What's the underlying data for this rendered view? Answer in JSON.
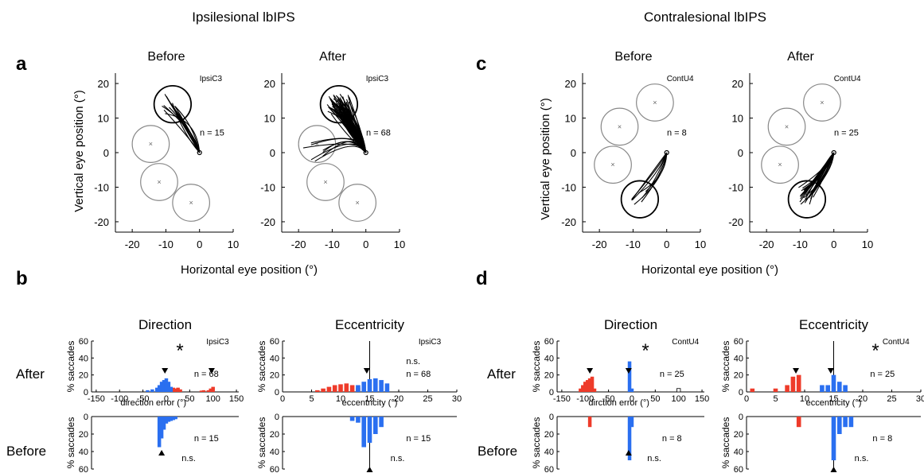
{
  "figure": {
    "left_title": "Ipsilesional lbIPS",
    "right_title": "Contralesional lbIPS",
    "letters": {
      "a": "a",
      "b": "b",
      "c": "c",
      "d": "d"
    },
    "xlabel": "Horizontal eye position (o)",
    "ylabel": "Vertical eye position (o)"
  },
  "colors": {
    "red": "#ee3b2a",
    "blue": "#2a6ff0",
    "circle": "#888888",
    "trace": "#000000"
  },
  "chart_data": [
    {
      "type": "line",
      "panel": "a-before",
      "title": "Before",
      "monkey": "IpsiC3",
      "n": "n = 15",
      "xlim": [
        -25,
        10
      ],
      "ylim": [
        -23,
        23
      ],
      "xticks": [
        -20,
        -10,
        0,
        10
      ],
      "yticks": [
        20,
        10,
        0,
        -10,
        -20
      ],
      "targets": [
        {
          "x": -14.5,
          "y": 2.5,
          "r": 5.5
        },
        {
          "x": -12,
          "y": -8.5,
          "r": 5.5
        },
        {
          "x": -2.5,
          "y": -14.5,
          "r": 5.5
        }
      ],
      "chosen_target": {
        "x": -8,
        "y": 14,
        "r": 5.5
      },
      "n_traces": 15
    },
    {
      "type": "line",
      "panel": "a-after",
      "title": "After",
      "monkey": "IpsiC3",
      "n": "n = 68",
      "xlim": [
        -25,
        10
      ],
      "ylim": [
        -23,
        23
      ],
      "xticks": [
        -20,
        -10,
        0,
        10
      ],
      "yticks": [
        20,
        10,
        0,
        -10,
        -20
      ],
      "targets": [
        {
          "x": -14.5,
          "y": 2.5,
          "r": 5.5
        },
        {
          "x": -12,
          "y": -8.5,
          "r": 5.5
        },
        {
          "x": -2.5,
          "y": -14.5,
          "r": 5.5
        }
      ],
      "chosen_target": {
        "x": -8,
        "y": 14,
        "r": 5.5
      },
      "n_traces": 68
    },
    {
      "type": "line",
      "panel": "c-before",
      "title": "Before",
      "monkey": "ContU4",
      "n": "n = 8",
      "xlim": [
        -25,
        10
      ],
      "ylim": [
        -23,
        23
      ],
      "xticks": [
        -20,
        -10,
        0,
        10
      ],
      "yticks": [
        20,
        10,
        0,
        -10,
        -20
      ],
      "targets": [
        {
          "x": -14,
          "y": 7.5,
          "r": 5.5
        },
        {
          "x": -3.5,
          "y": 14.5,
          "r": 5.5
        },
        {
          "x": -16,
          "y": -3.5,
          "r": 5.5
        }
      ],
      "chosen_target": {
        "x": -8,
        "y": -13.5,
        "r": 5.5
      },
      "n_traces": 8
    },
    {
      "type": "line",
      "panel": "c-after",
      "title": "After",
      "monkey": "ContU4",
      "n": "n = 25",
      "xlim": [
        -25,
        10
      ],
      "ylim": [
        -23,
        23
      ],
      "xticks": [
        -20,
        -10,
        0,
        10
      ],
      "yticks": [
        20,
        10,
        0,
        -10,
        -20
      ],
      "targets": [
        {
          "x": -14,
          "y": 7.5,
          "r": 5.5
        },
        {
          "x": -3.5,
          "y": 14.5,
          "r": 5.5
        },
        {
          "x": -16,
          "y": -3.5,
          "r": 5.5
        }
      ],
      "chosen_target": {
        "x": -8,
        "y": -13.5,
        "r": 5.5
      },
      "n_traces": 25
    },
    {
      "type": "bar",
      "panel": "b-direction",
      "title": "Direction",
      "monkey": "IpsiC3",
      "xlabel": "direction error (o)",
      "ylabel": "% saccades",
      "xlim": [
        -160,
        155
      ],
      "xticks": [
        -150,
        -100,
        -50,
        0,
        50,
        100,
        150
      ],
      "ylim": [
        0,
        60
      ],
      "yticks": [
        0,
        20,
        40,
        60
      ],
      "after": {
        "n": "n = 68",
        "mark": "*",
        "median": -3,
        "median2": 97,
        "red": {
          "x": [
            15,
            20,
            25,
            30,
            75,
            80,
            90,
            95,
            100
          ],
          "y": [
            5,
            4,
            5,
            3,
            1.5,
            2,
            2,
            4,
            6
          ]
        },
        "blue": {
          "x": [
            -40,
            -30,
            -20,
            -15,
            -10,
            -5,
            0,
            5,
            10
          ],
          "y": [
            2,
            3,
            5,
            8,
            12,
            14,
            16,
            12,
            6
          ]
        }
      },
      "before": {
        "n": "n = 15",
        "stat": "n.s.",
        "median": -10,
        "red": {
          "x": [],
          "y": []
        },
        "blue": {
          "x": [
            -15,
            -10,
            -5,
            0,
            5,
            10,
            15,
            20
          ],
          "y": [
            35,
            25,
            15,
            8,
            6,
            5,
            4,
            3
          ]
        }
      }
    },
    {
      "type": "bar",
      "panel": "b-eccentricity",
      "title": "Eccentricity",
      "monkey": "IpsiC3",
      "xlabel": "eccentricity (o)",
      "ylabel": "% saccades",
      "xlim": [
        0,
        30
      ],
      "xticks": [
        0,
        5,
        10,
        15,
        20,
        25,
        30
      ],
      "ylim": [
        0,
        60
      ],
      "yticks": [
        0,
        20,
        40,
        60
      ],
      "vline": 15,
      "after": {
        "n": "n = 68",
        "stat": "n.s.",
        "median": 14.5,
        "red": {
          "x": [
            6,
            7,
            8,
            9,
            10,
            11,
            12,
            13
          ],
          "y": [
            2,
            4,
            6,
            8,
            9,
            10,
            8,
            5
          ]
        },
        "blue": {
          "x": [
            13,
            14,
            15,
            16,
            17,
            18
          ],
          "y": [
            8,
            12,
            15,
            16,
            14,
            10
          ]
        }
      },
      "before": {
        "n": "n = 15",
        "stat": "n.s.",
        "median": 15,
        "red": {
          "x": [],
          "y": []
        },
        "blue": {
          "x": [
            12,
            13,
            14,
            15,
            16,
            17
          ],
          "y": [
            5,
            7,
            35,
            30,
            20,
            12
          ]
        }
      }
    },
    {
      "type": "bar",
      "panel": "d-direction",
      "title": "Direction",
      "monkey": "ContU4",
      "xlabel": "dirction error (o)",
      "ylabel": "% saccades",
      "xlim": [
        -160,
        155
      ],
      "xticks": [
        -150,
        -100,
        -50,
        0,
        50,
        100,
        150
      ],
      "ylim": [
        0,
        60
      ],
      "yticks": [
        0,
        20,
        40,
        60
      ],
      "after": {
        "n": "n = 25",
        "mark": "*",
        "median": -90,
        "median2": -7,
        "red": {
          "x": [
            -110,
            -105,
            -100,
            -95,
            -90,
            -85,
            -80
          ],
          "y": [
            4,
            8,
            12,
            14,
            16,
            18,
            4
          ]
        },
        "blue": {
          "x": [
            -5,
            0
          ],
          "y": [
            36,
            4
          ]
        },
        "white": {
          "x": [
            100
          ],
          "y": [
            4
          ]
        }
      },
      "before": {
        "n": "n = 8",
        "stat": "n.s.",
        "median": -7,
        "red": {
          "x": [
            -90
          ],
          "y": [
            12
          ]
        },
        "blue": {
          "x": [
            -5,
            0
          ],
          "y": [
            50,
            12
          ]
        }
      }
    },
    {
      "type": "bar",
      "panel": "d-eccentricity",
      "title": "Eccentricity",
      "monkey": "ContU4",
      "xlabel": "eccentricity (o)",
      "ylabel": "% saccades",
      "xlim": [
        0,
        30
      ],
      "xticks": [
        0,
        5,
        10,
        15,
        20,
        25,
        30
      ],
      "ylim": [
        0,
        60
      ],
      "yticks": [
        0,
        20,
        40,
        60
      ],
      "vline": 15,
      "after": {
        "n": "n = 25",
        "mark": "*",
        "median": 8.5,
        "median2": 14.5,
        "red": {
          "x": [
            1,
            5,
            7,
            8,
            9
          ],
          "y": [
            4,
            4,
            8,
            18,
            20
          ]
        },
        "blue": {
          "x": [
            13,
            14,
            15,
            16,
            17
          ],
          "y": [
            8,
            8,
            20,
            12,
            8
          ]
        }
      },
      "before": {
        "n": "n = 8",
        "stat": "n.s.",
        "median": 15,
        "red": {
          "x": [
            9
          ],
          "y": [
            12
          ]
        },
        "blue": {
          "x": [
            15,
            16,
            17,
            18
          ],
          "y": [
            50,
            20,
            12,
            12
          ]
        }
      }
    }
  ],
  "row_labels": {
    "after": "After",
    "before": "Before"
  }
}
